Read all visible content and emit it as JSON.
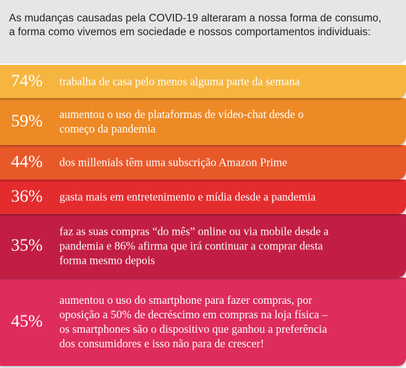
{
  "header": {
    "text_line1": "As mudanças causadas pela COVID-19 alteraram a nossa forma de consumo,",
    "text_line2": "a forma como vivemos em sociedade e nossos comportamentos individuais:"
  },
  "stats": [
    {
      "percent": "74%",
      "lines": [
        "trabalha de casa pelo menos alguma parte da semana"
      ],
      "color": "#f5b53f"
    },
    {
      "percent": "59%",
      "lines": [
        "aumentou o uso de plataformas de vídeo-chat desde o",
        "começo da pandemia"
      ],
      "color": "#ee8a26"
    },
    {
      "percent": "44%",
      "lines": [
        "dos millenials têm uma subscrição Amazon Prime"
      ],
      "color": "#e8592a"
    },
    {
      "percent": "36%",
      "lines": [
        "gasta mais em entretenimento e mídia desde a pandemia"
      ],
      "color": "#e42c2e"
    },
    {
      "percent": "35%",
      "lines": [
        "faz as suas compras “do mês” online ou via mobile desde a",
        "pandemia e 86% afirma que irá continuar a comprar desta",
        "forma mesmo depois"
      ],
      "color": "#c21e43"
    },
    {
      "percent": "45%",
      "lines": [
        "aumentou o uso do smartphone para fazer compras, por",
        "oposição a 50% de decréscimo em compras na loja física –",
        "os smartphones são o dispositivo que ganhou a preferência",
        "dos consumidores e isso não para de crescer!"
      ],
      "color": "#de2d5c"
    }
  ]
}
